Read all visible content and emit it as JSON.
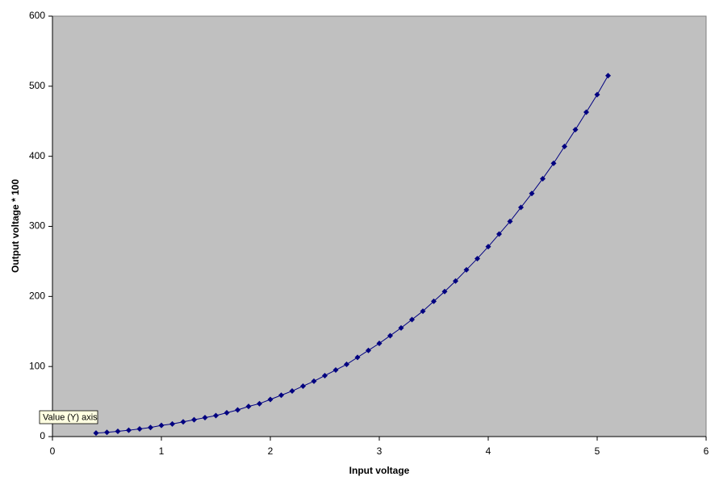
{
  "chart_data": {
    "type": "scatter",
    "x_label": "Input voltage",
    "y_label": "Output voltage * 100",
    "tooltip": "Value (Y) axis",
    "x": [
      0.4,
      0.5,
      0.6,
      0.7,
      0.8,
      0.9,
      1.0,
      1.1,
      1.2,
      1.3,
      1.4,
      1.5,
      1.6,
      1.7,
      1.8,
      1.9,
      2.0,
      2.1,
      2.2,
      2.3,
      2.4,
      2.5,
      2.6,
      2.7,
      2.8,
      2.9,
      3.0,
      3.1,
      3.2,
      3.3,
      3.4,
      3.5,
      3.6,
      3.7,
      3.8,
      3.9,
      4.0,
      4.1,
      4.2,
      4.3,
      4.4,
      4.5,
      4.6,
      4.7,
      4.8,
      4.9,
      5.0,
      5.1
    ],
    "series": [
      {
        "color": "#000080",
        "values": [
          5,
          6,
          7.5,
          9,
          11,
          13,
          16,
          18,
          21,
          24,
          27,
          30,
          34,
          38,
          43,
          47,
          53,
          59,
          65,
          72,
          79,
          87,
          95,
          103,
          113,
          123,
          133,
          144,
          155,
          167,
          179,
          193,
          207,
          222,
          238,
          254,
          271,
          289,
          307,
          327,
          347,
          368,
          390,
          414,
          438,
          463,
          488,
          515
        ]
      }
    ],
    "xlim": [
      0,
      6
    ],
    "xticks": [
      0,
      1,
      2,
      3,
      4,
      5,
      6
    ],
    "ylim": [
      0,
      600
    ],
    "yticks": [
      0,
      100,
      200,
      300,
      400,
      500,
      600
    ],
    "plot_background": "#c0c0c0",
    "grid": false
  }
}
